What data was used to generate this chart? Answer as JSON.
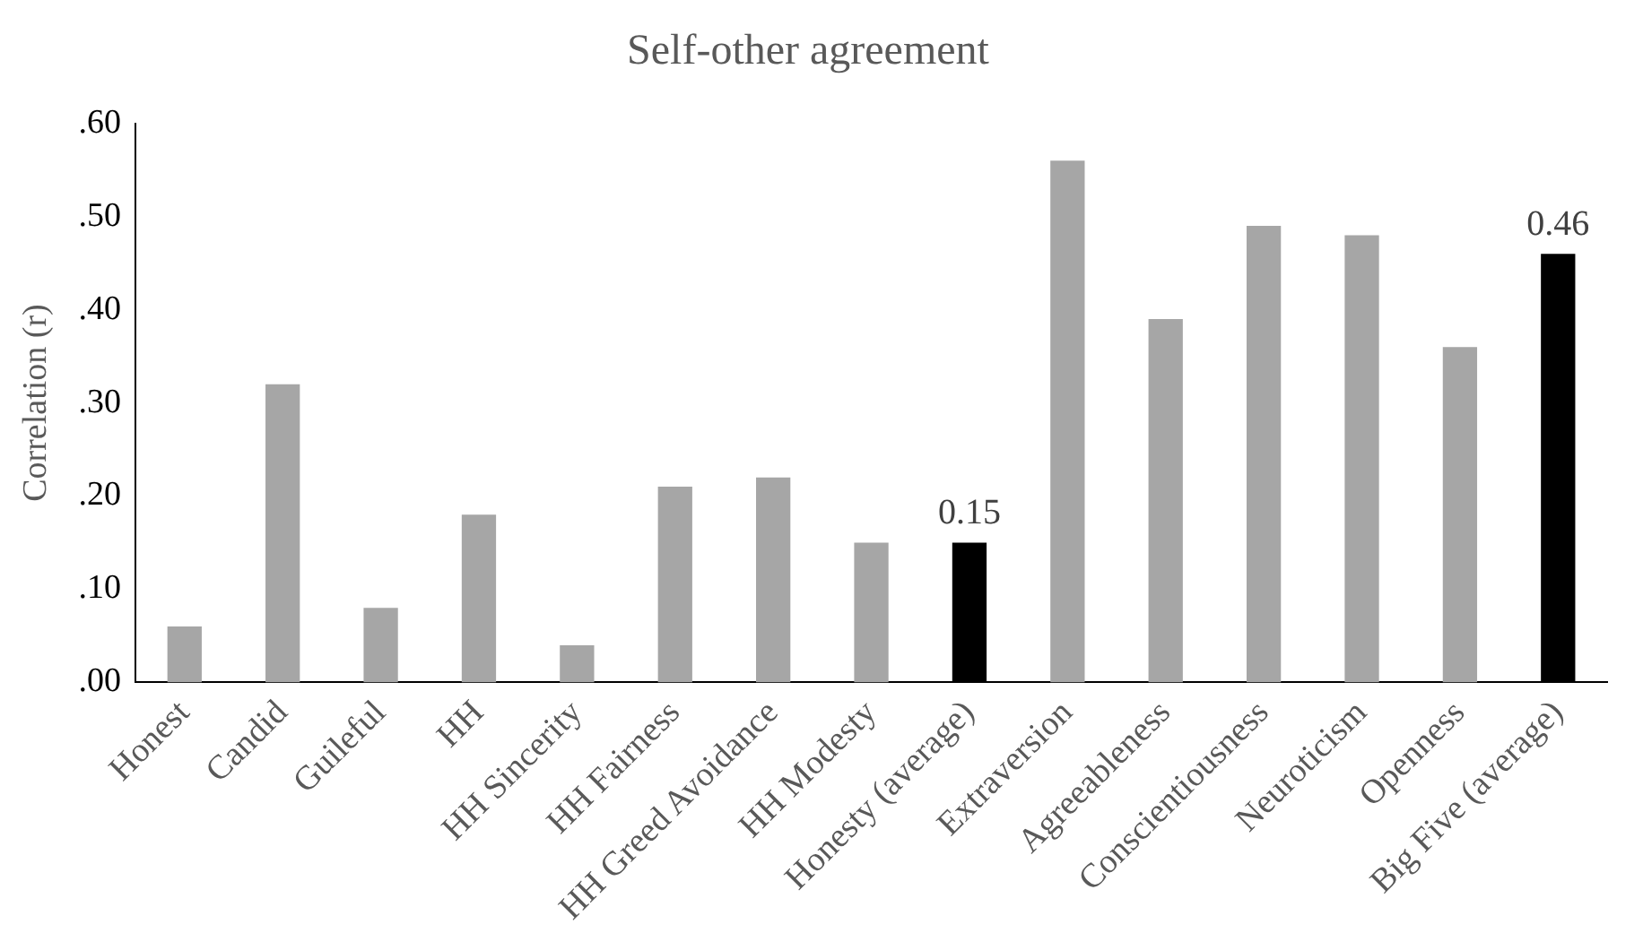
{
  "chart_data": {
    "type": "bar",
    "title": "Self-other agreement",
    "ylabel": "Correlation (r)",
    "categories": [
      "Honest",
      "Candid",
      "Guileful",
      "HH",
      "HH Sincerity",
      "HH Fairness",
      "HH Greed Avoidance",
      "HH Modesty",
      "Honesty (average)",
      "Extraversion",
      "Agreeableness",
      "Conscientiousness",
      "Neuroticism",
      "Openness",
      "Big Five (average)"
    ],
    "values": [
      0.06,
      0.32,
      0.08,
      0.18,
      0.04,
      0.21,
      0.22,
      0.15,
      0.15,
      0.56,
      0.39,
      0.49,
      0.48,
      0.36,
      0.46
    ],
    "colors": [
      "#a6a6a6",
      "#a6a6a6",
      "#a6a6a6",
      "#a6a6a6",
      "#a6a6a6",
      "#a6a6a6",
      "#a6a6a6",
      "#a6a6a6",
      "#000000",
      "#a6a6a6",
      "#a6a6a6",
      "#a6a6a6",
      "#a6a6a6",
      "#a6a6a6",
      "#000000"
    ],
    "value_labels": [
      null,
      null,
      null,
      null,
      null,
      null,
      null,
      null,
      "0.15",
      null,
      null,
      null,
      null,
      null,
      "0.46"
    ],
    "ylim": [
      0,
      0.6
    ],
    "yticks": [
      {
        "value": 0,
        "label": ".00"
      },
      {
        "value": 0.1,
        "label": ".10"
      },
      {
        "value": 0.2,
        "label": ".20"
      },
      {
        "value": 0.3,
        "label": ".30"
      },
      {
        "value": 0.4,
        "label": ".40"
      },
      {
        "value": 0.5,
        "label": ".50"
      },
      {
        "value": 0.6,
        "label": ".60"
      }
    ],
    "grid": false,
    "legend": false
  }
}
